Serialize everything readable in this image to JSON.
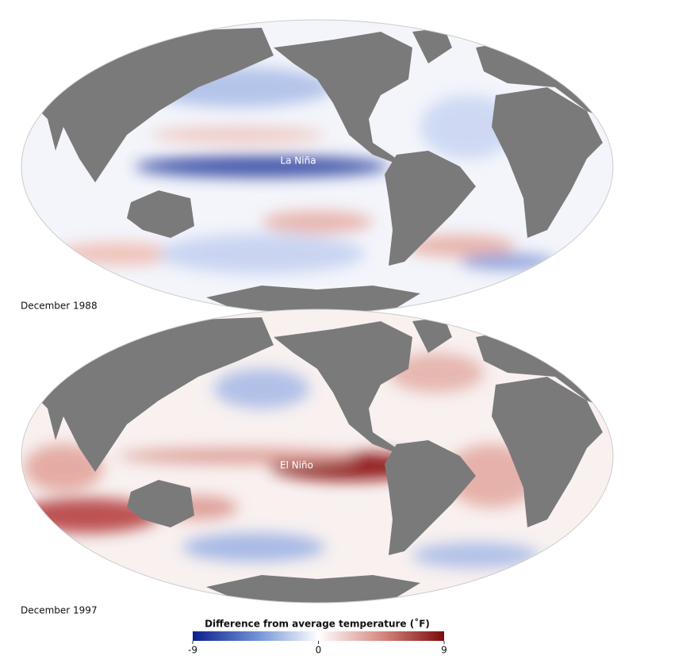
{
  "maps": [
    {
      "label": "La Niña",
      "caption": "December 1988"
    },
    {
      "label": "El Niño",
      "caption": "December 1997"
    }
  ],
  "colorbar": {
    "title": "Difference from average temperature (˚F)",
    "range": [
      -9,
      9
    ],
    "ticks": [
      -9,
      0,
      9
    ]
  }
}
